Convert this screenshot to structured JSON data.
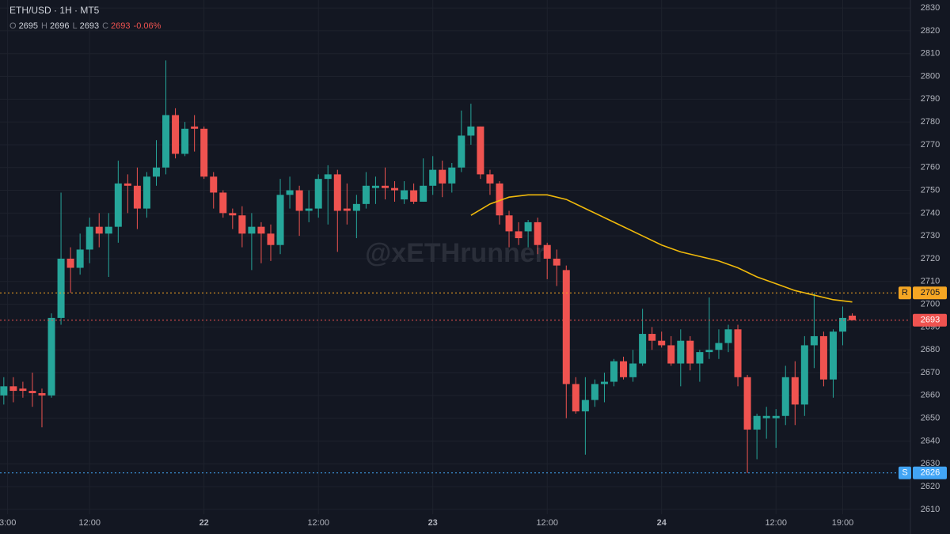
{
  "chart_data": {
    "type": "candlestick",
    "title": "ETH/USD · 1H · MT5",
    "ohlc_header": {
      "labels": [
        "O",
        "H",
        "L",
        "C"
      ],
      "values": [
        2695,
        2696,
        2693,
        2693
      ]
    },
    "change": {
      "value": -0.06,
      "label": "-0.06%"
    },
    "watermark": "@xETHrunner",
    "up_color": "#26a69a",
    "down_color": "#ef5350",
    "open": [
      2660,
      2664,
      2663,
      2662,
      2661,
      2660,
      2694,
      2720,
      2716,
      2724,
      2734,
      2731,
      2734,
      2753,
      2752,
      2742,
      2756,
      2760,
      2783,
      2766,
      2778,
      2777,
      2756,
      2749,
      2740,
      2739,
      2731,
      2734,
      2731,
      2726,
      2748,
      2750,
      2741,
      2742,
      2755,
      2757,
      2742,
      2741,
      2744,
      2751,
      2752,
      2751,
      2746,
      2750,
      2745,
      2752,
      2759,
      2753,
      2760,
      2774,
      2778,
      2757,
      2753,
      2739,
      2732,
      2732,
      2736,
      2726,
      2720,
      2715,
      2665,
      2653,
      2658,
      2665,
      2666,
      2675,
      2668,
      2674,
      2687,
      2684,
      2682,
      2674,
      2684,
      2674,
      2679,
      2680,
      2683,
      2689,
      2668,
      2645,
      2650,
      2650,
      2651,
      2668,
      2656,
      2682,
      2686,
      2667,
      2688,
      2695
    ],
    "high": [
      2668,
      2668,
      2666,
      2670,
      2663,
      2696,
      2749,
      2725,
      2731,
      2738,
      2740,
      2740,
      2763,
      2757,
      2760,
      2758,
      2772,
      2807,
      2786,
      2780,
      2783,
      2778,
      2758,
      2750,
      2742,
      2743,
      2740,
      2736,
      2735,
      2755,
      2756,
      2752,
      2750,
      2757,
      2761,
      2759,
      2753,
      2748,
      2758,
      2756,
      2760,
      2754,
      2754,
      2753,
      2764,
      2765,
      2763,
      2762,
      2785,
      2788,
      2778,
      2759,
      2754,
      2741,
      2736,
      2737,
      2738,
      2727,
      2724,
      2717,
      2668,
      2668,
      2667,
      2670,
      2676,
      2677,
      2680,
      2698,
      2690,
      2688,
      2686,
      2689,
      2686,
      2680,
      2703,
      2689,
      2691,
      2691,
      2669,
      2652,
      2655,
      2654,
      2673,
      2675,
      2686,
      2705,
      2688,
      2689,
      2699,
      2696
    ],
    "low": [
      2656,
      2657,
      2659,
      2655,
      2646,
      2659,
      2691,
      2705,
      2713,
      2718,
      2725,
      2712,
      2727,
      2740,
      2733,
      2738,
      2752,
      2757,
      2764,
      2765,
      2767,
      2755,
      2742,
      2738,
      2733,
      2725,
      2715,
      2718,
      2719,
      2722,
      2742,
      2730,
      2736,
      2738,
      2735,
      2723,
      2735,
      2729,
      2742,
      2744,
      2746,
      2745,
      2744,
      2744,
      2745,
      2748,
      2747,
      2749,
      2758,
      2770,
      2755,
      2748,
      2735,
      2725,
      2726,
      2725,
      2722,
      2711,
      2708,
      2650,
      2652,
      2634,
      2655,
      2657,
      2664,
      2667,
      2666,
      2673,
      2680,
      2681,
      2673,
      2664,
      2671,
      2666,
      2676,
      2676,
      2679,
      2664,
      2626,
      2632,
      2641,
      2637,
      2647,
      2647,
      2651,
      2672,
      2664,
      2659,
      2682,
      2693
    ],
    "close": [
      2664,
      2662,
      2662,
      2661,
      2660,
      2694,
      2720,
      2716,
      2724,
      2734,
      2731,
      2734,
      2753,
      2752,
      2742,
      2756,
      2760,
      2783,
      2766,
      2777,
      2777,
      2756,
      2749,
      2740,
      2739,
      2731,
      2734,
      2731,
      2726,
      2748,
      2750,
      2741,
      2742,
      2755,
      2757,
      2741,
      2741,
      2744,
      2752,
      2752,
      2751,
      2750,
      2750,
      2745,
      2752,
      2759,
      2753,
      2760,
      2774,
      2778,
      2757,
      2753,
      2739,
      2732,
      2729,
      2736,
      2726,
      2720,
      2717,
      2665,
      2653,
      2658,
      2665,
      2666,
      2675,
      2668,
      2674,
      2687,
      2684,
      2682,
      2674,
      2684,
      2674,
      2679,
      2680,
      2683,
      2689,
      2668,
      2645,
      2651,
      2651,
      2651,
      2668,
      2656,
      2682,
      2686,
      2667,
      2688,
      2694,
      2693
    ],
    "moving_average": {
      "color": "#f0b90b",
      "x": [
        49,
        51,
        53,
        55,
        57,
        59,
        61,
        63,
        65,
        67,
        69,
        71,
        73,
        75,
        77,
        79,
        81,
        83,
        85,
        87,
        89
      ],
      "values": [
        2739,
        2744,
        2747,
        2748,
        2748,
        2746,
        2742,
        2738,
        2734,
        2730,
        2726,
        2723,
        2721,
        2719,
        2716,
        2712,
        2709,
        2706,
        2704,
        2702,
        2701
      ]
    },
    "levels": [
      {
        "name": "R",
        "value": 2705,
        "color": "#f5a623"
      },
      {
        "value": 2693,
        "color": "#ef5350"
      },
      {
        "name": "S",
        "value": 2626,
        "color": "#42a5f5"
      }
    ],
    "xlim": [
      -0.4,
      95.1
    ],
    "xticks": [
      {
        "value": 0.4,
        "label": "3:00"
      },
      {
        "value": 9,
        "label": "12:00"
      },
      {
        "value": 21,
        "label": "22"
      },
      {
        "value": 33,
        "label": "12:00"
      },
      {
        "value": 45,
        "label": "23"
      },
      {
        "value": 57,
        "label": "12:00"
      },
      {
        "value": 69,
        "label": "24"
      },
      {
        "value": 81,
        "label": "12:00"
      },
      {
        "value": 88,
        "label": "19:00"
      }
    ],
    "ylim": [
      2599.2,
      2833.5
    ],
    "yticks": [
      2610,
      2620,
      2630,
      2640,
      2650,
      2660,
      2670,
      2680,
      2690,
      2700,
      2710,
      2720,
      2730,
      2740,
      2750,
      2760,
      2770,
      2780,
      2790,
      2800,
      2810,
      2820,
      2830
    ],
    "grid": true
  }
}
